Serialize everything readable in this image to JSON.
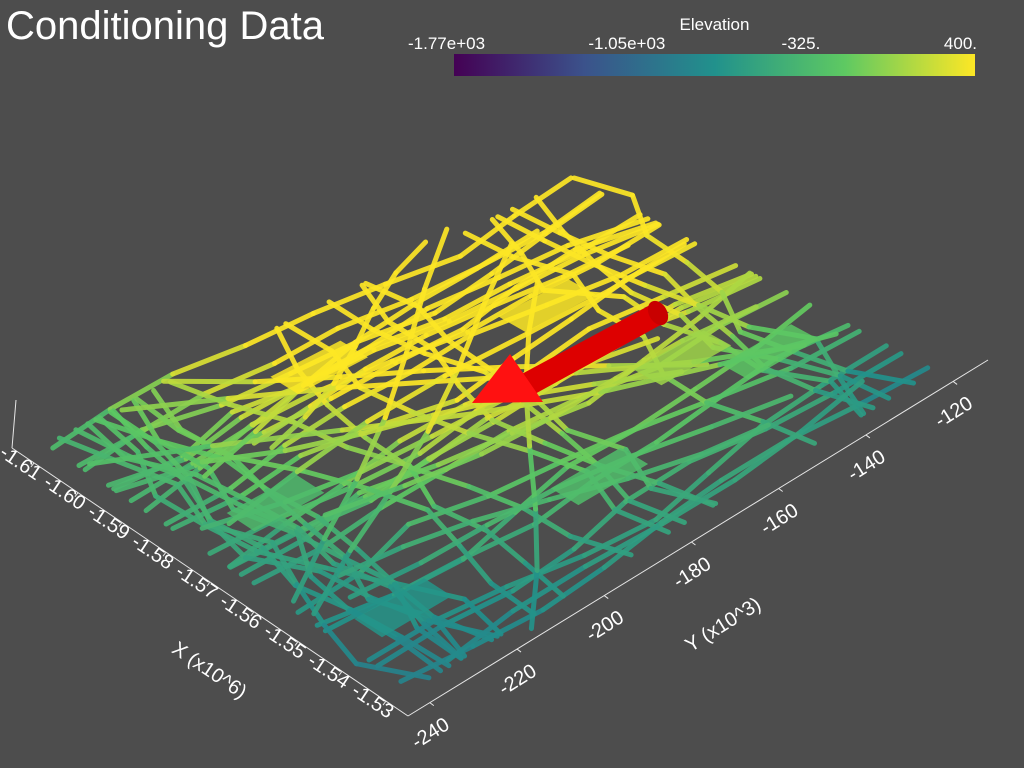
{
  "title": "Conditioning Data",
  "colorbar": {
    "title": "Elevation",
    "min": -1770,
    "max": 400,
    "tick_labels": [
      "-1.77e+03",
      "-1.05e+03",
      "-325.",
      "400."
    ],
    "tick_values": [
      -1770,
      -1050,
      -325,
      400
    ],
    "colormap": "viridis",
    "colors": [
      "#440154",
      "#3b528b",
      "#21918c",
      "#5ec962",
      "#fde725"
    ]
  },
  "chart_data": {
    "type": "scatter",
    "title": "Conditioning Data",
    "xlabel": "X (x10^6)",
    "ylabel": "Y (x10^3)",
    "color_variable": "Elevation",
    "x_ticks": [
      "-1.61",
      "-1.60",
      "-1.59",
      "-1.58",
      "-1.57",
      "-1.56",
      "-1.55",
      "-1.54",
      "-1.53"
    ],
    "x_tick_values": [
      -1.61,
      -1.6,
      -1.59,
      -1.58,
      -1.57,
      -1.56,
      -1.55,
      -1.54,
      -1.53
    ],
    "y_ticks": [
      "-240",
      "-220",
      "-200",
      "-180",
      "-160",
      "-140",
      "-120"
    ],
    "y_tick_values": [
      -240,
      -220,
      -200,
      -180,
      -160,
      -140,
      -120
    ],
    "xlim": [
      -1.615,
      -1.525
    ],
    "ylim": [
      -245,
      -112
    ],
    "zlim": [
      -1770,
      400
    ],
    "grid": false,
    "arrow_color": "#ff0000",
    "elevation_trend": "high elevation near x=-1.61, y=-155; low elevation toward x=-1.53, y=-120"
  }
}
